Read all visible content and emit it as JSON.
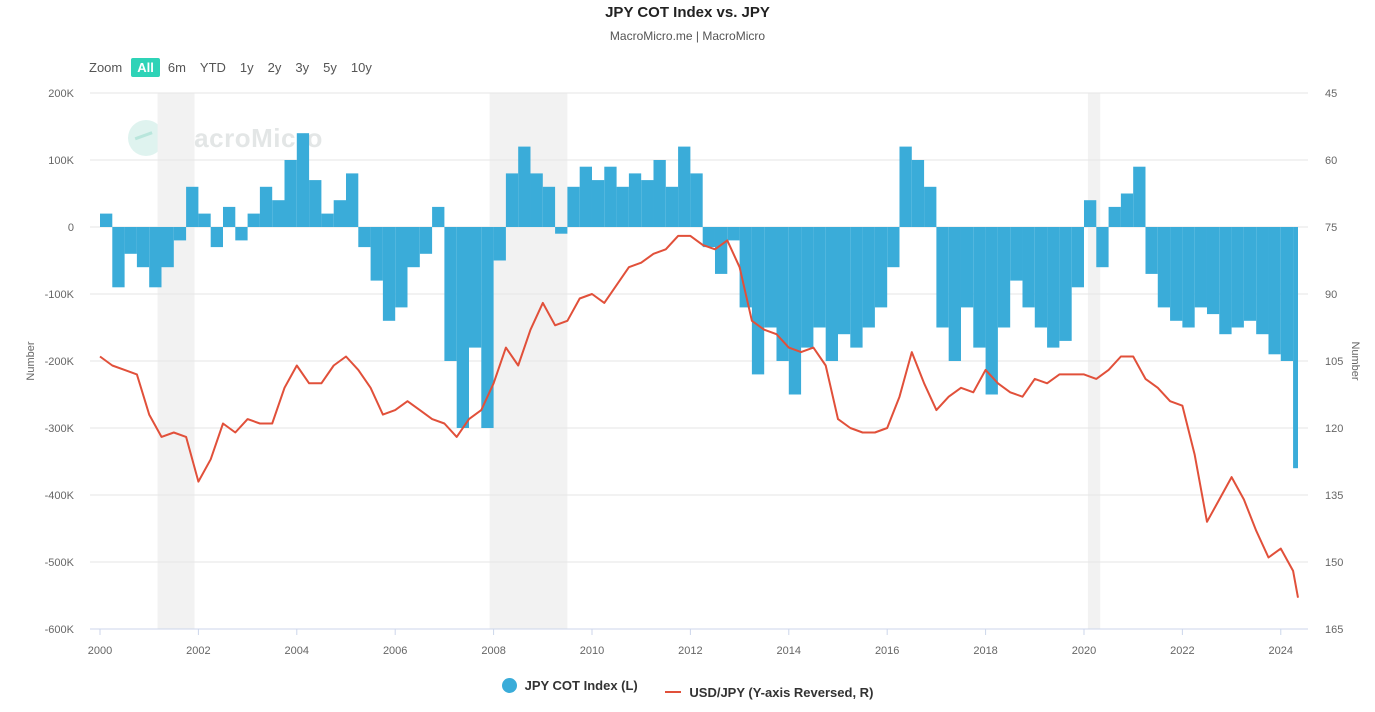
{
  "header": {
    "title": "JPY COT Index vs. JPY",
    "subtitle": "MacroMicro.me | MacroMicro"
  },
  "watermark": "MacroMicro",
  "zoom": {
    "label": "Zoom",
    "options": [
      "All",
      "6m",
      "YTD",
      "1y",
      "2y",
      "3y",
      "5y",
      "10y"
    ],
    "selected": "All"
  },
  "colors": {
    "cot": "#3aacd9",
    "usdjpy": "#e1503a",
    "recession": "#f2f2f2",
    "accent": "#2ed3b7"
  },
  "chart_data": {
    "type": "bar+line",
    "title": "JPY COT Index vs. JPY",
    "x_range": [
      2000.0,
      2024.35
    ],
    "x_ticks": [
      2000,
      2002,
      2004,
      2006,
      2008,
      2010,
      2012,
      2014,
      2016,
      2018,
      2020,
      2022,
      2024
    ],
    "left_axis": {
      "label": "Number",
      "range": [
        -600000,
        200000
      ],
      "ticks": [
        200000,
        100000,
        0,
        -100000,
        -200000,
        -300000,
        -400000,
        -500000,
        -600000
      ],
      "tick_labels": [
        "200K",
        "100K",
        "0",
        "-100K",
        "-200K",
        "-300K",
        "-400K",
        "-500K",
        "-600K"
      ]
    },
    "right_axis": {
      "label": "Number",
      "range": [
        45,
        165
      ],
      "reversed": true,
      "ticks": [
        45,
        60,
        75,
        90,
        105,
        120,
        135,
        150,
        165
      ],
      "tick_labels": [
        "45",
        "60",
        "75",
        "90",
        "105",
        "120",
        "135",
        "150",
        "165"
      ]
    },
    "recession_periods": [
      [
        2001.17,
        2001.92
      ],
      [
        2007.92,
        2009.5
      ],
      [
        2020.08,
        2020.33
      ]
    ],
    "series": [
      {
        "name": "JPY COT Index (L)",
        "type": "column",
        "axis": "left",
        "x": [
          2000.0,
          2000.25,
          2000.5,
          2000.75,
          2001.0,
          2001.25,
          2001.5,
          2001.75,
          2002.0,
          2002.25,
          2002.5,
          2002.75,
          2003.0,
          2003.25,
          2003.5,
          2003.75,
          2004.0,
          2004.25,
          2004.5,
          2004.75,
          2005.0,
          2005.25,
          2005.5,
          2005.75,
          2006.0,
          2006.25,
          2006.5,
          2006.75,
          2007.0,
          2007.25,
          2007.5,
          2007.75,
          2008.0,
          2008.25,
          2008.5,
          2008.75,
          2009.0,
          2009.25,
          2009.5,
          2009.75,
          2010.0,
          2010.25,
          2010.5,
          2010.75,
          2011.0,
          2011.25,
          2011.5,
          2011.75,
          2012.0,
          2012.25,
          2012.5,
          2012.75,
          2013.0,
          2013.25,
          2013.5,
          2013.75,
          2014.0,
          2014.25,
          2014.5,
          2014.75,
          2015.0,
          2015.25,
          2015.5,
          2015.75,
          2016.0,
          2016.25,
          2016.5,
          2016.75,
          2017.0,
          2017.25,
          2017.5,
          2017.75,
          2018.0,
          2018.25,
          2018.5,
          2018.75,
          2019.0,
          2019.25,
          2019.5,
          2019.75,
          2020.0,
          2020.25,
          2020.5,
          2020.75,
          2021.0,
          2021.25,
          2021.5,
          2021.75,
          2022.0,
          2022.25,
          2022.5,
          2022.75,
          2023.0,
          2023.25,
          2023.5,
          2023.75,
          2024.0,
          2024.25
        ],
        "y": [
          20000,
          -90000,
          -40000,
          -60000,
          -90000,
          -60000,
          -20000,
          60000,
          20000,
          -30000,
          30000,
          -20000,
          20000,
          60000,
          40000,
          100000,
          140000,
          70000,
          20000,
          40000,
          80000,
          -30000,
          -80000,
          -140000,
          -120000,
          -60000,
          -40000,
          30000,
          -200000,
          -300000,
          -180000,
          -300000,
          -50000,
          80000,
          120000,
          80000,
          60000,
          -10000,
          60000,
          90000,
          70000,
          90000,
          60000,
          80000,
          70000,
          100000,
          60000,
          120000,
          80000,
          -30000,
          -70000,
          -20000,
          -120000,
          -220000,
          -150000,
          -200000,
          -250000,
          -180000,
          -150000,
          -200000,
          -160000,
          -180000,
          -150000,
          -120000,
          -60000,
          120000,
          100000,
          60000,
          -150000,
          -200000,
          -120000,
          -180000,
          -250000,
          -150000,
          -80000,
          -120000,
          -150000,
          -180000,
          -170000,
          -90000,
          40000,
          -60000,
          30000,
          50000,
          90000,
          -70000,
          -120000,
          -140000,
          -150000,
          -120000,
          -130000,
          -160000,
          -150000,
          -140000,
          -160000,
          -190000,
          -200000,
          -360000
        ]
      },
      {
        "name": "USD/JPY (Y-axis Reversed, R)",
        "type": "line",
        "axis": "right",
        "x": [
          2000.0,
          2000.25,
          2000.5,
          2000.75,
          2001.0,
          2001.25,
          2001.5,
          2001.75,
          2002.0,
          2002.25,
          2002.5,
          2002.75,
          2003.0,
          2003.25,
          2003.5,
          2003.75,
          2004.0,
          2004.25,
          2004.5,
          2004.75,
          2005.0,
          2005.25,
          2005.5,
          2005.75,
          2006.0,
          2006.25,
          2006.5,
          2006.75,
          2007.0,
          2007.25,
          2007.5,
          2007.75,
          2008.0,
          2008.25,
          2008.5,
          2008.75,
          2009.0,
          2009.25,
          2009.5,
          2009.75,
          2010.0,
          2010.25,
          2010.5,
          2010.75,
          2011.0,
          2011.25,
          2011.5,
          2011.75,
          2012.0,
          2012.25,
          2012.5,
          2012.75,
          2013.0,
          2013.25,
          2013.5,
          2013.75,
          2014.0,
          2014.25,
          2014.5,
          2014.75,
          2015.0,
          2015.25,
          2015.5,
          2015.75,
          2016.0,
          2016.25,
          2016.5,
          2016.75,
          2017.0,
          2017.25,
          2017.5,
          2017.75,
          2018.0,
          2018.25,
          2018.5,
          2018.75,
          2019.0,
          2019.25,
          2019.5,
          2019.75,
          2020.0,
          2020.25,
          2020.5,
          2020.75,
          2021.0,
          2021.25,
          2021.5,
          2021.75,
          2022.0,
          2022.25,
          2022.5,
          2022.75,
          2023.0,
          2023.25,
          2023.5,
          2023.75,
          2024.0,
          2024.25,
          2024.35
        ],
        "y": [
          104,
          106,
          107,
          108,
          117,
          122,
          121,
          122,
          132,
          127,
          119,
          121,
          118,
          119,
          119,
          111,
          106,
          110,
          110,
          106,
          104,
          107,
          111,
          117,
          116,
          114,
          116,
          118,
          119,
          122,
          118,
          116,
          110,
          102,
          106,
          98,
          92,
          97,
          96,
          91,
          90,
          92,
          88,
          84,
          83,
          81,
          80,
          77,
          77,
          79,
          80,
          78,
          84,
          96,
          98,
          99,
          102,
          103,
          102,
          106,
          118,
          120,
          121,
          121,
          120,
          113,
          103,
          110,
          116,
          113,
          111,
          112,
          107,
          110,
          112,
          113,
          109,
          110,
          108,
          108,
          108,
          109,
          107,
          104,
          104,
          109,
          111,
          114,
          115,
          126,
          141,
          136,
          131,
          136,
          143,
          149,
          147,
          152,
          158
        ]
      }
    ]
  },
  "legend": {
    "cot_label": "JPY COT Index (L)",
    "usdjpy_label": "USD/JPY (Y-axis Reversed, R)"
  }
}
